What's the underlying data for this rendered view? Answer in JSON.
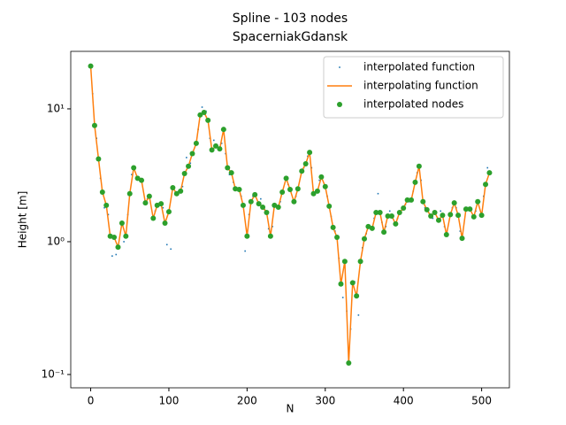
{
  "chart_data": {
    "type": "line",
    "title": "Spline - 103 nodes",
    "subtitle": "SpacerniakGdansk",
    "xlabel": "N",
    "ylabel": "Height [m]",
    "yscale": "log",
    "xlim": [
      -25.5,
      535.5
    ],
    "ylim": [
      0.0794,
      27.1
    ],
    "xticks": [
      0,
      100,
      200,
      300,
      400,
      500
    ],
    "yticks": [
      {
        "value": 0.1,
        "label": "10⁻¹"
      },
      {
        "value": 1,
        "label": "10⁰"
      },
      {
        "value": 10,
        "label": "10¹"
      }
    ],
    "legend": "upper right",
    "x": [
      0,
      5,
      10,
      15,
      20,
      25,
      30,
      35,
      40,
      45,
      50,
      55,
      60,
      65,
      70,
      75,
      80,
      85,
      90,
      95,
      100,
      105,
      110,
      115,
      120,
      125,
      130,
      135,
      140,
      145,
      150,
      155,
      160,
      165,
      170,
      175,
      180,
      185,
      190,
      195,
      200,
      205,
      210,
      215,
      220,
      225,
      230,
      235,
      240,
      245,
      250,
      255,
      260,
      265,
      270,
      275,
      280,
      285,
      290,
      295,
      300,
      305,
      310,
      315,
      320,
      325,
      330,
      335,
      340,
      345,
      350,
      355,
      360,
      365,
      370,
      375,
      380,
      385,
      390,
      395,
      400,
      405,
      410,
      415,
      420,
      425,
      430,
      435,
      440,
      445,
      450,
      455,
      460,
      465,
      470,
      475,
      480,
      485,
      490,
      495,
      500,
      505,
      510
    ],
    "series": [
      {
        "name": "interpolated function",
        "color": "#1f77b4",
        "mark": "dot",
        "x": [
          2.5,
          7.5,
          12.5,
          17.5,
          22.5,
          27.5,
          32.5,
          42.5,
          47.5,
          52.5,
          62.5,
          72.5,
          82.5,
          92.5,
          97.5,
          102.5,
          112.5,
          117.5,
          122.5,
          127.5,
          137.5,
          142.5,
          147.5,
          152.5,
          157.5,
          167.5,
          172.5,
          177.5,
          182.5,
          192.5,
          197.5,
          202.5,
          207.5,
          217.5,
          222.5,
          227.5,
          232.5,
          242.5,
          252.5,
          262.5,
          272.5,
          277.5,
          282.5,
          292.5,
          302.5,
          307.5,
          312.5,
          317.5,
          322.5,
          327.5,
          332.5,
          337.5,
          342.5,
          347.5,
          352.5,
          362.5,
          367.5,
          372.5,
          377.5,
          382.5,
          392.5,
          402.5,
          407.5,
          412.5,
          417.5,
          422.5,
          427.5,
          437.5,
          447.5,
          452.5,
          462.5,
          467.5,
          472.5,
          482.5,
          492.5,
          497.5,
          502.5,
          507.5
        ],
        "values": [
          13,
          6,
          3,
          1.8,
          1.6,
          0.78,
          0.8,
          1.0,
          1.6,
          3.2,
          2.9,
          2.1,
          1.7,
          1.8,
          0.95,
          0.88,
          2.4,
          2.6,
          4.3,
          3.9,
          7,
          10.3,
          9.6,
          6,
          5.8,
          5.5,
          4.6,
          3.2,
          2.8,
          2.2,
          0.85,
          1.6,
          2.2,
          2.1,
          1.75,
          1.25,
          1.3,
          2.0,
          2.7,
          2.2,
          3.6,
          4.4,
          3.6,
          2.9,
          2.2,
          1.55,
          1.2,
          0.75,
          0.38,
          0.3,
          0.22,
          0.5,
          0.28,
          0.9,
          1.15,
          1.5,
          2.3,
          1.4,
          1.3,
          1.7,
          1.5,
          1.9,
          2.0,
          2.4,
          3.3,
          2.9,
          1.8,
          1.5,
          1.7,
          1.3,
          1.8,
          1.8,
          1.2,
          1.8,
          1.7,
          2.0,
          2.2,
          3.6
        ]
      },
      {
        "name": "interpolating function",
        "color": "#ff7f0e",
        "mark": "line",
        "values": [
          21,
          7.5,
          4.2,
          2.36,
          1.88,
          1.1,
          1.08,
          0.91,
          1.38,
          1.1,
          2.3,
          3.6,
          3.0,
          2.9,
          1.96,
          2.2,
          1.5,
          1.88,
          1.93,
          1.38,
          1.68,
          2.55,
          2.3,
          2.4,
          3.26,
          3.7,
          4.6,
          5.5,
          9.0,
          9.4,
          8.2,
          4.9,
          5.25,
          5.0,
          7.0,
          3.6,
          3.3,
          2.5,
          2.47,
          1.88,
          1.1,
          2.0,
          2.26,
          1.93,
          1.82,
          1.66,
          1.1,
          1.88,
          1.82,
          2.36,
          3.0,
          2.47,
          2.0,
          2.5,
          3.4,
          3.86,
          4.7,
          2.3,
          2.4,
          3.07,
          2.6,
          1.85,
          1.28,
          1.08,
          0.48,
          0.71,
          0.122,
          0.49,
          0.39,
          0.71,
          1.05,
          1.3,
          1.26,
          1.66,
          1.66,
          1.18,
          1.56,
          1.56,
          1.36,
          1.66,
          1.79,
          2.06,
          2.06,
          2.8,
          3.7,
          2.0,
          1.74,
          1.56,
          1.66,
          1.45,
          1.58,
          1.13,
          1.6,
          1.96,
          1.58,
          1.06,
          1.76,
          1.76,
          1.54,
          2.0,
          1.58,
          2.7,
          3.3
        ]
      },
      {
        "name": "interpolated nodes",
        "color": "#2ca02c",
        "mark": "circle",
        "values": [
          21,
          7.5,
          4.2,
          2.36,
          1.88,
          1.1,
          1.08,
          0.91,
          1.38,
          1.1,
          2.3,
          3.6,
          3.0,
          2.9,
          1.96,
          2.2,
          1.5,
          1.88,
          1.93,
          1.38,
          1.68,
          2.55,
          2.3,
          2.4,
          3.26,
          3.7,
          4.6,
          5.5,
          9.0,
          9.4,
          8.2,
          4.9,
          5.25,
          5.0,
          7.0,
          3.6,
          3.3,
          2.5,
          2.47,
          1.88,
          1.1,
          2.0,
          2.26,
          1.93,
          1.82,
          1.66,
          1.1,
          1.88,
          1.82,
          2.36,
          3.0,
          2.47,
          2.0,
          2.5,
          3.4,
          3.86,
          4.7,
          2.3,
          2.4,
          3.07,
          2.6,
          1.85,
          1.28,
          1.08,
          0.48,
          0.71,
          0.122,
          0.49,
          0.39,
          0.71,
          1.05,
          1.3,
          1.26,
          1.66,
          1.66,
          1.18,
          1.56,
          1.56,
          1.36,
          1.66,
          1.79,
          2.06,
          2.06,
          2.8,
          3.7,
          2.0,
          1.74,
          1.56,
          1.66,
          1.45,
          1.58,
          1.13,
          1.6,
          1.96,
          1.58,
          1.06,
          1.76,
          1.76,
          1.54,
          2.0,
          1.58,
          2.7,
          3.3
        ]
      }
    ]
  }
}
